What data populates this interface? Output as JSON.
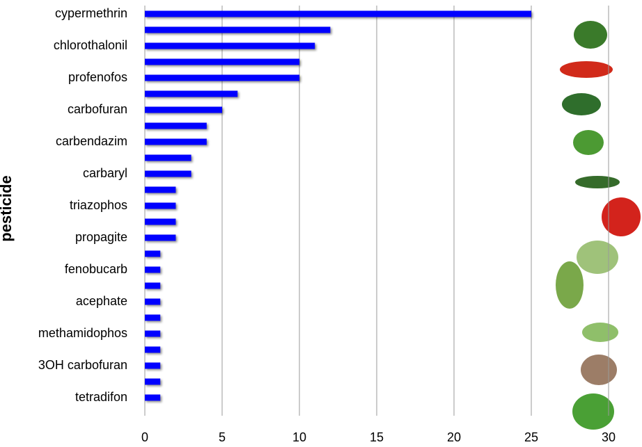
{
  "chart_data": {
    "type": "bar",
    "orientation": "horizontal",
    "y_label": "pesticide",
    "categories": [
      "cypermethrin",
      null,
      "chlorothalonil",
      null,
      "profenofos",
      null,
      "carbofuran",
      null,
      "carbendazim",
      null,
      "carbaryl",
      null,
      "triazophos",
      null,
      "propagite",
      null,
      "fenobucarb",
      null,
      "acephate",
      null,
      "methamidophos",
      null,
      "3OH carbofuran",
      null,
      "tetradifon"
    ],
    "values": [
      25,
      12,
      11,
      10,
      10,
      6,
      5,
      4,
      4,
      3,
      3,
      2,
      2,
      2,
      2,
      1,
      1,
      1,
      1,
      1,
      1,
      1,
      1,
      1,
      1
    ],
    "color": "#0000ff",
    "xlim": [
      0,
      30
    ],
    "xticks": [
      0,
      5,
      10,
      15,
      20,
      25,
      30
    ],
    "grid": true
  }
}
